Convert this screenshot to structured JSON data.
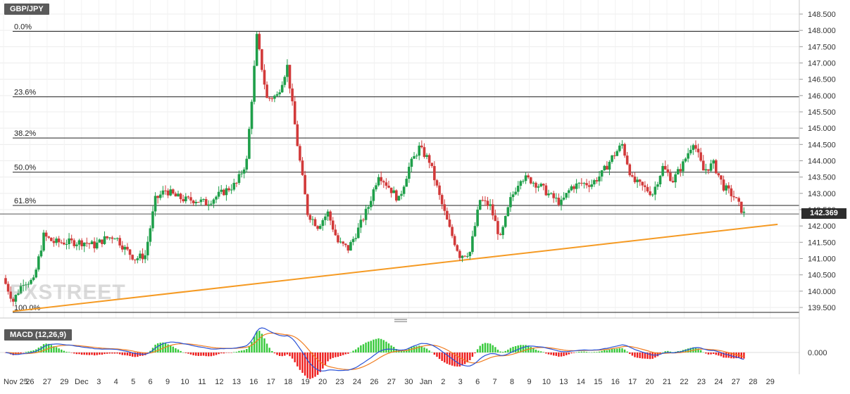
{
  "symbol": "GBP/JPY",
  "last_price": "142.369",
  "watermark": "FXSTREET",
  "macd": {
    "label": "MACD (12,26,9)",
    "zero_label": "0.000"
  },
  "y_ticks": [
    "148.500",
    "148.000",
    "147.500",
    "147.000",
    "146.500",
    "146.000",
    "145.500",
    "145.000",
    "144.500",
    "144.000",
    "143.500",
    "143.000",
    "142.500",
    "142.000",
    "141.500",
    "141.000",
    "140.500",
    "140.000",
    "139.500"
  ],
  "x_ticks": [
    "Nov 25",
    "26",
    "27",
    "29",
    "Dec",
    "3",
    "4",
    "5",
    "6",
    "9",
    "10",
    "11",
    "12",
    "13",
    "16",
    "17",
    "18",
    "19",
    "20",
    "23",
    "24",
    "26",
    "27",
    "30",
    "Jan",
    "2",
    "3",
    "6",
    "7",
    "8",
    "9",
    "10",
    "13",
    "14",
    "15",
    "16",
    "17",
    "20",
    "21",
    "22",
    "23",
    "24",
    "27",
    "28",
    "29"
  ],
  "fib_levels": [
    {
      "label": "0.0%",
      "value": 147.97
    },
    {
      "label": "23.6%",
      "value": 145.96
    },
    {
      "label": "38.2%",
      "value": 144.7
    },
    {
      "label": "50.0%",
      "value": 143.65
    },
    {
      "label": "61.8%",
      "value": 142.63
    },
    {
      "label": "100.0%",
      "value": 139.35
    }
  ],
  "colors": {
    "up": "#1f9f4a",
    "down": "#d23a3a",
    "trendline": "#f59a23",
    "macd_line": "#2a52d6",
    "signal_line": "#f07d21",
    "hist_pos": "#36c93a",
    "hist_neg": "#ee1c1c"
  },
  "chart_data": {
    "type": "candlestick",
    "title": "GBP/JPY",
    "ylim": [
      139.3,
      148.6
    ],
    "grid": true,
    "close_path": [
      [
        0,
        140.4
      ],
      [
        1,
        139.7
      ],
      [
        2,
        140.3
      ],
      [
        3,
        140.3
      ],
      [
        4,
        141.7
      ],
      [
        5,
        141.5
      ],
      [
        6,
        141.5
      ],
      [
        7,
        141.5
      ],
      [
        8,
        141.5
      ],
      [
        9,
        141.4
      ],
      [
        10,
        141.6
      ],
      [
        11,
        141.7
      ],
      [
        12,
        141.3
      ],
      [
        13,
        141.0
      ],
      [
        14,
        141.1
      ],
      [
        15,
        142.8
      ],
      [
        16,
        143.1
      ],
      [
        17,
        142.9
      ],
      [
        18,
        142.8
      ],
      [
        19,
        142.8
      ],
      [
        20,
        142.7
      ],
      [
        21,
        142.9
      ],
      [
        22,
        143.1
      ],
      [
        23,
        143.3
      ],
      [
        24,
        144.0
      ],
      [
        25,
        147.8
      ],
      [
        26,
        145.9
      ],
      [
        27,
        146.0
      ],
      [
        28,
        146.9
      ],
      [
        29,
        144.5
      ],
      [
        30,
        142.4
      ],
      [
        31,
        142.0
      ],
      [
        32,
        142.4
      ],
      [
        33,
        141.5
      ],
      [
        34,
        141.3
      ],
      [
        35,
        141.9
      ],
      [
        36,
        142.6
      ],
      [
        37,
        143.6
      ],
      [
        38,
        143.2
      ],
      [
        39,
        142.8
      ],
      [
        40,
        143.8
      ],
      [
        41,
        144.4
      ],
      [
        42,
        144.0
      ],
      [
        43,
        142.9
      ],
      [
        44,
        141.9
      ],
      [
        45,
        141.1
      ],
      [
        46,
        141.2
      ],
      [
        47,
        142.8
      ],
      [
        48,
        142.6
      ],
      [
        49,
        141.6
      ],
      [
        50,
        142.8
      ],
      [
        51,
        143.5
      ],
      [
        52,
        143.4
      ],
      [
        53,
        143.2
      ],
      [
        54,
        142.9
      ],
      [
        55,
        142.7
      ],
      [
        56,
        143.2
      ],
      [
        57,
        143.3
      ],
      [
        58,
        143.3
      ],
      [
        59,
        143.6
      ],
      [
        60,
        144.1
      ],
      [
        61,
        144.5
      ],
      [
        62,
        143.4
      ],
      [
        63,
        143.2
      ],
      [
        64,
        143.0
      ],
      [
        65,
        143.8
      ],
      [
        66,
        143.4
      ],
      [
        67,
        143.9
      ],
      [
        68,
        144.6
      ],
      [
        69,
        143.7
      ],
      [
        70,
        143.9
      ],
      [
        71,
        143.2
      ],
      [
        72,
        142.9
      ],
      [
        73,
        142.37
      ]
    ],
    "trendline": {
      "start": [
        0,
        139.38
      ],
      "end": [
        79,
        142.05
      ]
    },
    "macd": {
      "fast": 12,
      "slow": 26,
      "signal": 9
    }
  }
}
